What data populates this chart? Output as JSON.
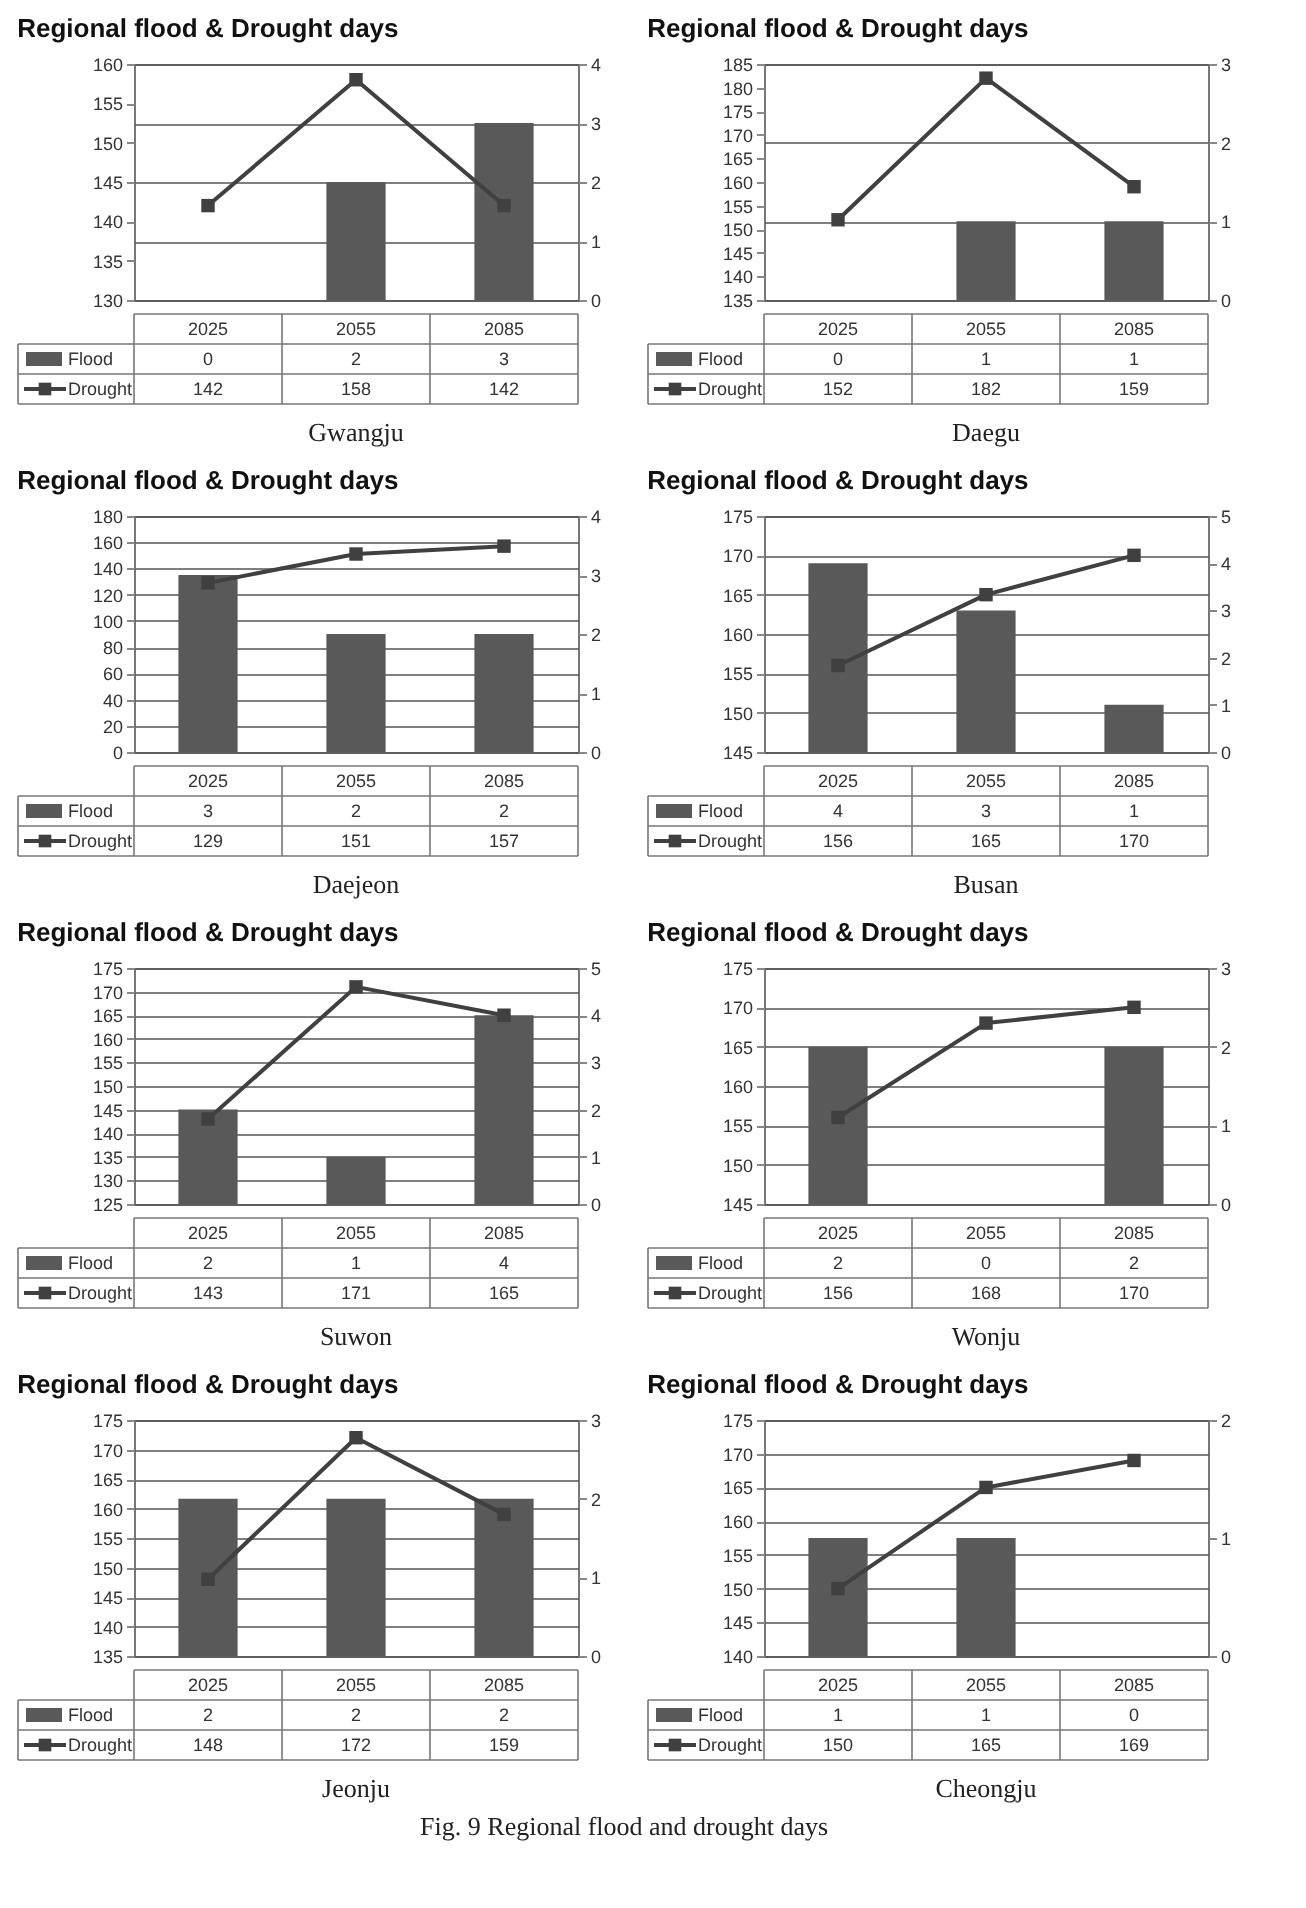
{
  "chart_data": [
    {
      "type": "bar",
      "title": "Regional flood & Drought days",
      "categories": [
        "2025",
        "2055",
        "2085"
      ],
      "series": [
        {
          "name": "Flood",
          "axis": "y2",
          "color": "#595959",
          "values": [
            0,
            2,
            3
          ]
        },
        {
          "name": "Drought",
          "type": "line",
          "color": "#404040",
          "values": [
            142,
            158,
            142
          ]
        }
      ],
      "ylim": [
        130,
        160
      ],
      "yticks": [
        130,
        135,
        140,
        145,
        150,
        155,
        160
      ],
      "y2lim": [
        0,
        4
      ],
      "y2ticks": [
        0,
        1,
        2,
        3,
        4
      ],
      "grid": "y2",
      "marker": "square",
      "line_style": "solid",
      "legend": "bottom left",
      "data_labels": true,
      "annotations": [
        "Gwangju"
      ]
    },
    {
      "type": "bar",
      "title": "Regional flood & Drought days",
      "categories": [
        "2025",
        "2055",
        "2085"
      ],
      "series": [
        {
          "name": "Flood",
          "axis": "y2",
          "color": "#595959",
          "values": [
            0,
            1,
            1
          ]
        },
        {
          "name": "Drought",
          "type": "line",
          "color": "#404040",
          "values": [
            152,
            182,
            159
          ]
        }
      ],
      "ylim": [
        135,
        185
      ],
      "yticks": [
        135,
        140,
        145,
        150,
        155,
        160,
        165,
        170,
        175,
        180,
        185
      ],
      "y2lim": [
        0,
        3
      ],
      "y2ticks": [
        0,
        1,
        2,
        3
      ],
      "grid": "y2",
      "marker": "square",
      "line_style": "solid",
      "legend": "bottom left",
      "data_labels": true,
      "annotations": [
        "Daegu"
      ]
    },
    {
      "type": "bar",
      "title": "Regional flood & Drought days",
      "categories": [
        "2025",
        "2055",
        "2085"
      ],
      "series": [
        {
          "name": "Flood",
          "axis": "y2",
          "color": "#595959",
          "values": [
            3,
            2,
            2
          ]
        },
        {
          "name": "Drought",
          "type": "line",
          "color": "#404040",
          "values": [
            129,
            151,
            157
          ]
        }
      ],
      "ylim": [
        0,
        180
      ],
      "yticks": [
        0,
        20,
        40,
        60,
        80,
        100,
        120,
        140,
        160,
        180
      ],
      "y2lim": [
        0,
        4
      ],
      "y2ticks": [
        0,
        1,
        2,
        3,
        4
      ],
      "grid": "y",
      "marker": "square",
      "line_style": "solid",
      "legend": "bottom left",
      "data_labels": true,
      "annotations": [
        "Daejeon"
      ]
    },
    {
      "type": "bar",
      "title": "Regional flood & Drought days",
      "categories": [
        "2025",
        "2055",
        "2085"
      ],
      "series": [
        {
          "name": "Flood",
          "axis": "y2",
          "color": "#595959",
          "values": [
            4,
            3,
            1
          ]
        },
        {
          "name": "Drought",
          "type": "line",
          "color": "#404040",
          "values": [
            156,
            165,
            170
          ]
        }
      ],
      "ylim": [
        145,
        175
      ],
      "yticks": [
        145,
        150,
        155,
        160,
        165,
        170,
        175
      ],
      "y2lim": [
        0,
        5
      ],
      "y2ticks": [
        0,
        1,
        2,
        3,
        4,
        5
      ],
      "grid": "y",
      "marker": "square",
      "line_style": "solid",
      "legend": "bottom left",
      "data_labels": true,
      "annotations": [
        "Busan"
      ]
    },
    {
      "type": "bar",
      "title": "Regional flood & Drought days",
      "categories": [
        "2025",
        "2055",
        "2085"
      ],
      "series": [
        {
          "name": "Flood",
          "axis": "y2",
          "color": "#595959",
          "values": [
            2,
            1,
            4
          ]
        },
        {
          "name": "Drought",
          "type": "line",
          "color": "#404040",
          "values": [
            143,
            171,
            165
          ]
        }
      ],
      "ylim": [
        125,
        175
      ],
      "yticks": [
        125,
        130,
        135,
        140,
        145,
        150,
        155,
        160,
        165,
        170,
        175
      ],
      "y2lim": [
        0,
        5
      ],
      "y2ticks": [
        0,
        1,
        2,
        3,
        4,
        5
      ],
      "grid": "y",
      "marker": "square",
      "line_style": "solid",
      "legend": "bottom left",
      "data_labels": true,
      "annotations": [
        "Suwon"
      ]
    },
    {
      "type": "bar",
      "title": "Regional flood & Drought days",
      "categories": [
        "2025",
        "2055",
        "2085"
      ],
      "series": [
        {
          "name": "Flood",
          "axis": "y2",
          "color": "#595959",
          "values": [
            2,
            0,
            2
          ]
        },
        {
          "name": "Drought",
          "type": "line",
          "color": "#404040",
          "values": [
            156,
            168,
            170
          ]
        }
      ],
      "ylim": [
        145,
        175
      ],
      "yticks": [
        145,
        150,
        155,
        160,
        165,
        170,
        175
      ],
      "y2lim": [
        0,
        3
      ],
      "y2ticks": [
        0,
        1,
        2,
        3
      ],
      "grid": "y",
      "marker": "square",
      "line_style": "solid",
      "legend": "bottom left",
      "data_labels": true,
      "annotations": [
        "Wonju"
      ]
    },
    {
      "type": "bar",
      "title": "Regional flood & Drought days",
      "categories": [
        "2025",
        "2055",
        "2085"
      ],
      "series": [
        {
          "name": "Flood",
          "axis": "y2",
          "color": "#595959",
          "values": [
            2,
            2,
            2
          ]
        },
        {
          "name": "Drought",
          "type": "line",
          "color": "#404040",
          "values": [
            148,
            172,
            159
          ]
        }
      ],
      "ylim": [
        135,
        175
      ],
      "yticks": [
        135,
        140,
        145,
        150,
        155,
        160,
        165,
        170,
        175
      ],
      "y2lim": [
        0,
        3
      ],
      "y2ticks": [
        0,
        1,
        2,
        3
      ],
      "grid": "y",
      "marker": "square",
      "line_style": "solid",
      "legend": "bottom left",
      "data_labels": true,
      "annotations": [
        "Jeonju"
      ]
    },
    {
      "type": "bar",
      "title": "Regional flood & Drought days",
      "categories": [
        "2025",
        "2055",
        "2085"
      ],
      "series": [
        {
          "name": "Flood",
          "axis": "y2",
          "color": "#595959",
          "values": [
            1,
            1,
            0
          ]
        },
        {
          "name": "Drought",
          "type": "line",
          "color": "#404040",
          "values": [
            150,
            165,
            169
          ]
        }
      ],
      "ylim": [
        140,
        175
      ],
      "yticks": [
        140,
        145,
        150,
        155,
        160,
        165,
        170,
        175
      ],
      "y2lim": [
        0,
        2
      ],
      "y2ticks": [
        0,
        1,
        2
      ],
      "grid": "y",
      "marker": "square",
      "line_style": "solid",
      "legend": "bottom left",
      "data_labels": true,
      "annotations": [
        "Cheongju",
        "Fig. 9 Regional flood and drought days"
      ]
    }
  ]
}
